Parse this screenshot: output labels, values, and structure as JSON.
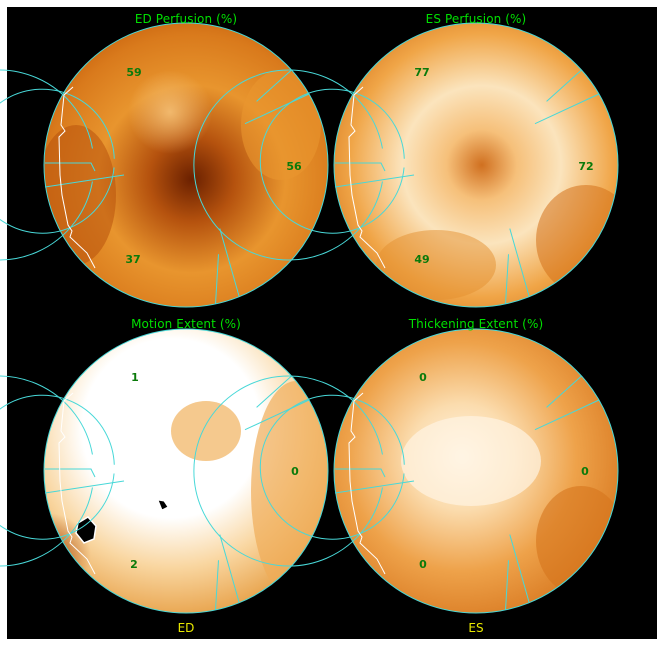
{
  "colors": {
    "background": "#000000",
    "title": "#00e000",
    "footer": "#e8e800",
    "segment_value": "#0a7a0a",
    "segment_lines": "#48d8d8",
    "outline_notch": "#ffffff"
  },
  "plots": [
    {
      "id": "ed-perfusion",
      "title": "ED Perfusion (%)",
      "values": {
        "anterior": "59",
        "lateral": "56",
        "inferior": "37"
      },
      "colormap": "orange",
      "intensity": "medium"
    },
    {
      "id": "es-perfusion",
      "title": "ES Perfusion (%)",
      "values": {
        "anterior": "77",
        "lateral": "72",
        "inferior": "49"
      },
      "colormap": "orange",
      "intensity": "bright"
    },
    {
      "id": "motion-extent",
      "title": "Motion Extent (%)",
      "values": {
        "anterior": "1",
        "lateral": "0",
        "inferior": "2"
      },
      "colormap": "orange",
      "intensity": "white"
    },
    {
      "id": "thickening-extent",
      "title": "Thickening Extent (%)",
      "values": {
        "anterior": "0",
        "lateral": "0",
        "inferior": "0"
      },
      "colormap": "orange",
      "intensity": "bright"
    }
  ],
  "footer": {
    "left": "ED",
    "right": "ES"
  }
}
